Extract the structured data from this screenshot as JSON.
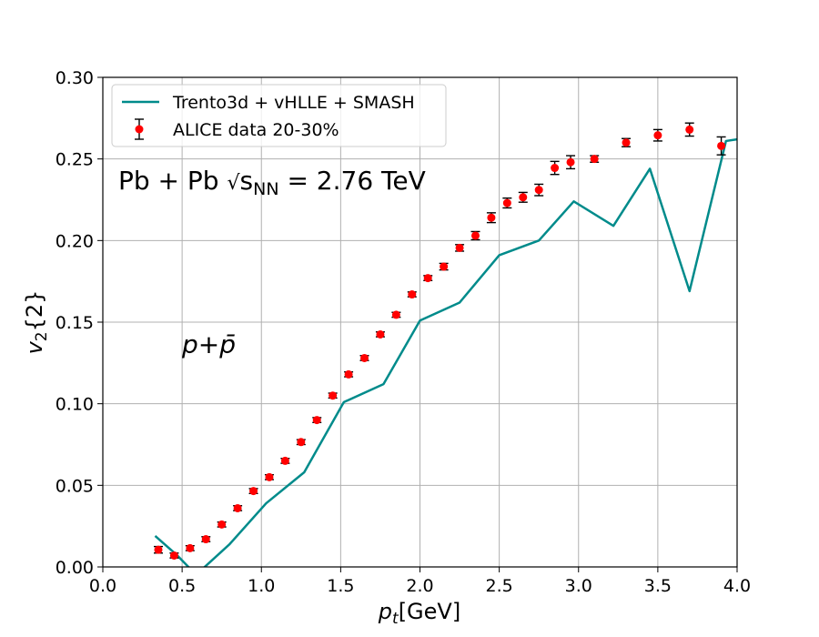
{
  "chart_data": {
    "type": "line",
    "xlabel": "p_t[GeV]",
    "ylabel": "v_2{2}",
    "xlim": [
      0.0,
      4.0
    ],
    "ylim": [
      0.0,
      0.3
    ],
    "xticks": [
      "0.0",
      "0.5",
      "1.0",
      "1.5",
      "2.0",
      "2.5",
      "3.0",
      "3.5",
      "4.0"
    ],
    "yticks": [
      "0.00",
      "0.05",
      "0.10",
      "0.15",
      "0.20",
      "0.25",
      "0.30"
    ],
    "grid": true,
    "legend_position": "top-left",
    "annotations": {
      "system": "Pb + Pb √s_NN = 2.76 TeV",
      "particle": "p+p̄"
    },
    "series": [
      {
        "name": "Trento3d + vHLLE + SMASH",
        "kind": "line",
        "color": "#008b8b",
        "x": [
          0.33,
          0.47,
          0.55,
          0.62,
          0.8,
          1.03,
          1.27,
          1.52,
          1.77,
          2.0,
          2.25,
          2.5,
          2.75,
          2.97,
          3.22,
          3.45,
          3.7,
          3.93,
          4.0
        ],
        "y": [
          0.019,
          0.007,
          -0.001,
          -0.002,
          0.014,
          0.039,
          0.058,
          0.101,
          0.112,
          0.151,
          0.162,
          0.191,
          0.2,
          0.224,
          0.209,
          0.244,
          0.169,
          0.261,
          0.262
        ]
      },
      {
        "name": "ALICE data 20-30%",
        "kind": "errorbar",
        "color": "#ff0000",
        "x": [
          0.35,
          0.45,
          0.55,
          0.65,
          0.75,
          0.85,
          0.95,
          1.05,
          1.15,
          1.25,
          1.35,
          1.45,
          1.55,
          1.65,
          1.75,
          1.85,
          1.95,
          2.05,
          2.15,
          2.25,
          2.35,
          2.45,
          2.55,
          2.65,
          2.75,
          2.85,
          2.95,
          3.1,
          3.3,
          3.5,
          3.7,
          3.9
        ],
        "y": [
          0.0105,
          0.007,
          0.0115,
          0.017,
          0.026,
          0.036,
          0.0465,
          0.055,
          0.065,
          0.0765,
          0.09,
          0.105,
          0.118,
          0.128,
          0.1425,
          0.1545,
          0.167,
          0.177,
          0.184,
          0.1955,
          0.203,
          0.214,
          0.223,
          0.2265,
          0.231,
          0.2445,
          0.248,
          0.25,
          0.26,
          0.2645,
          0.268,
          0.258
        ],
        "yerr": [
          0.002,
          0.0015,
          0.0015,
          0.0015,
          0.0015,
          0.0015,
          0.0015,
          0.0015,
          0.0015,
          0.0015,
          0.0015,
          0.0015,
          0.0015,
          0.0015,
          0.0015,
          0.0015,
          0.0015,
          0.0015,
          0.002,
          0.002,
          0.0025,
          0.003,
          0.003,
          0.003,
          0.0035,
          0.004,
          0.004,
          0.002,
          0.0025,
          0.0035,
          0.004,
          0.0055
        ]
      }
    ]
  }
}
